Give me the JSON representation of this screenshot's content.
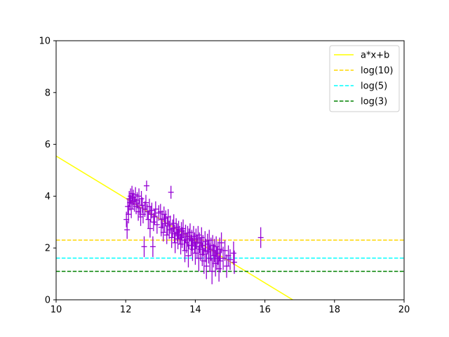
{
  "chart_data": {
    "type": "scatter",
    "xlim": [
      10,
      20
    ],
    "ylim": [
      0,
      10
    ],
    "xticks": [
      "10",
      "12",
      "14",
      "16",
      "18",
      "20"
    ],
    "yticks": [
      "0",
      "2",
      "4",
      "6",
      "8",
      "10"
    ],
    "grid": false,
    "legend_position": "top-right",
    "lines": [
      {
        "name": "a*x+b",
        "style": "solid",
        "color": "#ffff00",
        "x": [
          10,
          16.8
        ],
        "y": [
          5.55,
          0
        ]
      },
      {
        "name": "log(10)",
        "style": "dashed",
        "color": "#ffd700",
        "y": 2.303
      },
      {
        "name": "log(5)",
        "style": "dashed",
        "color": "#00ffff",
        "y": 1.609
      },
      {
        "name": "log(3)",
        "style": "dashed",
        "color": "#008000",
        "y": 1.099
      }
    ],
    "scatter": {
      "color": "#9400d3",
      "points": [
        {
          "x": 12.02,
          "y": 3.1,
          "e": 0.3
        },
        {
          "x": 12.04,
          "y": 2.7,
          "e": 0.35
        },
        {
          "x": 12.06,
          "y": 3.6,
          "e": 0.3
        },
        {
          "x": 12.08,
          "y": 3.3,
          "e": 0.35
        },
        {
          "x": 12.1,
          "y": 3.9,
          "e": 0.3
        },
        {
          "x": 12.12,
          "y": 3.75,
          "e": 0.3
        },
        {
          "x": 12.14,
          "y": 4.0,
          "e": 0.3
        },
        {
          "x": 12.16,
          "y": 3.5,
          "e": 0.35
        },
        {
          "x": 12.18,
          "y": 4.1,
          "e": 0.3
        },
        {
          "x": 12.2,
          "y": 3.8,
          "e": 0.3
        },
        {
          "x": 12.22,
          "y": 3.95,
          "e": 0.3
        },
        {
          "x": 12.25,
          "y": 3.7,
          "e": 0.3
        },
        {
          "x": 12.28,
          "y": 4.05,
          "e": 0.3
        },
        {
          "x": 12.3,
          "y": 3.6,
          "e": 0.3
        },
        {
          "x": 12.33,
          "y": 3.85,
          "e": 0.3
        },
        {
          "x": 12.36,
          "y": 3.4,
          "e": 0.35
        },
        {
          "x": 12.38,
          "y": 4.0,
          "e": 0.3
        },
        {
          "x": 12.4,
          "y": 3.55,
          "e": 0.3
        },
        {
          "x": 12.43,
          "y": 3.2,
          "e": 0.35
        },
        {
          "x": 12.45,
          "y": 3.9,
          "e": 0.3
        },
        {
          "x": 12.48,
          "y": 3.65,
          "e": 0.3
        },
        {
          "x": 12.5,
          "y": 3.3,
          "e": 0.35
        },
        {
          "x": 12.53,
          "y": 2.05,
          "e": 0.4
        },
        {
          "x": 12.55,
          "y": 3.5,
          "e": 0.3
        },
        {
          "x": 12.58,
          "y": 3.75,
          "e": 0.3
        },
        {
          "x": 12.6,
          "y": 4.4,
          "e": 0.2
        },
        {
          "x": 12.62,
          "y": 3.4,
          "e": 0.3
        },
        {
          "x": 12.65,
          "y": 3.1,
          "e": 0.35
        },
        {
          "x": 12.68,
          "y": 3.6,
          "e": 0.3
        },
        {
          "x": 12.7,
          "y": 2.75,
          "e": 0.35
        },
        {
          "x": 12.72,
          "y": 3.3,
          "e": 0.3
        },
        {
          "x": 12.75,
          "y": 3.45,
          "e": 0.3
        },
        {
          "x": 12.78,
          "y": 2.05,
          "e": 0.4
        },
        {
          "x": 12.8,
          "y": 3.0,
          "e": 0.35
        },
        {
          "x": 12.83,
          "y": 3.2,
          "e": 0.3
        },
        {
          "x": 12.86,
          "y": 3.5,
          "e": 0.3
        },
        {
          "x": 12.9,
          "y": 2.9,
          "e": 0.35
        },
        {
          "x": 12.95,
          "y": 3.35,
          "e": 0.3
        },
        {
          "x": 13.0,
          "y": 3.4,
          "e": 0.3
        },
        {
          "x": 13.02,
          "y": 2.8,
          "e": 0.35
        },
        {
          "x": 13.05,
          "y": 3.1,
          "e": 0.35
        },
        {
          "x": 13.08,
          "y": 2.6,
          "e": 0.35
        },
        {
          "x": 13.1,
          "y": 3.3,
          "e": 0.3
        },
        {
          "x": 13.12,
          "y": 2.95,
          "e": 0.35
        },
        {
          "x": 13.15,
          "y": 3.15,
          "e": 0.3
        },
        {
          "x": 13.18,
          "y": 2.5,
          "e": 0.35
        },
        {
          "x": 13.2,
          "y": 2.85,
          "e": 0.35
        },
        {
          "x": 13.22,
          "y": 3.2,
          "e": 0.3
        },
        {
          "x": 13.25,
          "y": 2.7,
          "e": 0.35
        },
        {
          "x": 13.28,
          "y": 2.9,
          "e": 0.35
        },
        {
          "x": 13.3,
          "y": 4.15,
          "e": 0.25
        },
        {
          "x": 13.32,
          "y": 2.4,
          "e": 0.4
        },
        {
          "x": 13.35,
          "y": 2.75,
          "e": 0.35
        },
        {
          "x": 13.38,
          "y": 2.95,
          "e": 0.35
        },
        {
          "x": 13.4,
          "y": 2.55,
          "e": 0.35
        },
        {
          "x": 13.42,
          "y": 2.2,
          "e": 0.4
        },
        {
          "x": 13.45,
          "y": 2.8,
          "e": 0.35
        },
        {
          "x": 13.48,
          "y": 2.6,
          "e": 0.35
        },
        {
          "x": 13.5,
          "y": 2.35,
          "e": 0.4
        },
        {
          "x": 13.52,
          "y": 2.7,
          "e": 0.35
        },
        {
          "x": 13.55,
          "y": 2.5,
          "e": 0.35
        },
        {
          "x": 13.58,
          "y": 2.15,
          "e": 0.4
        },
        {
          "x": 13.6,
          "y": 2.65,
          "e": 0.35
        },
        {
          "x": 13.62,
          "y": 2.4,
          "e": 0.4
        },
        {
          "x": 13.65,
          "y": 2.75,
          "e": 0.35
        },
        {
          "x": 13.68,
          "y": 2.3,
          "e": 0.4
        },
        {
          "x": 13.7,
          "y": 1.9,
          "e": 0.45
        },
        {
          "x": 13.72,
          "y": 2.55,
          "e": 0.35
        },
        {
          "x": 13.75,
          "y": 2.2,
          "e": 0.4
        },
        {
          "x": 13.78,
          "y": 2.45,
          "e": 0.4
        },
        {
          "x": 13.8,
          "y": 1.7,
          "e": 0.45
        },
        {
          "x": 13.82,
          "y": 2.35,
          "e": 0.4
        },
        {
          "x": 13.85,
          "y": 2.6,
          "e": 0.35
        },
        {
          "x": 13.88,
          "y": 2.1,
          "e": 0.4
        },
        {
          "x": 13.9,
          "y": 2.3,
          "e": 0.4
        },
        {
          "x": 13.92,
          "y": 1.95,
          "e": 0.45
        },
        {
          "x": 13.95,
          "y": 2.45,
          "e": 0.4
        },
        {
          "x": 13.98,
          "y": 2.2,
          "e": 0.4
        },
        {
          "x": 14.0,
          "y": 1.8,
          "e": 0.45
        },
        {
          "x": 14.02,
          "y": 2.35,
          "e": 0.4
        },
        {
          "x": 14.05,
          "y": 2.05,
          "e": 0.45
        },
        {
          "x": 14.08,
          "y": 2.5,
          "e": 0.35
        },
        {
          "x": 14.1,
          "y": 1.6,
          "e": 0.5
        },
        {
          "x": 14.12,
          "y": 2.2,
          "e": 0.4
        },
        {
          "x": 14.15,
          "y": 1.95,
          "e": 0.45
        },
        {
          "x": 14.18,
          "y": 2.4,
          "e": 0.4
        },
        {
          "x": 14.2,
          "y": 1.75,
          "e": 0.45
        },
        {
          "x": 14.22,
          "y": 2.1,
          "e": 0.4
        },
        {
          "x": 14.25,
          "y": 1.5,
          "e": 0.5
        },
        {
          "x": 14.28,
          "y": 2.25,
          "e": 0.4
        },
        {
          "x": 14.3,
          "y": 1.9,
          "e": 0.45
        },
        {
          "x": 14.32,
          "y": 1.3,
          "e": 0.5
        },
        {
          "x": 14.35,
          "y": 2.15,
          "e": 0.4
        },
        {
          "x": 14.38,
          "y": 1.85,
          "e": 0.45
        },
        {
          "x": 14.4,
          "y": 2.3,
          "e": 0.4
        },
        {
          "x": 14.42,
          "y": 1.6,
          "e": 0.5
        },
        {
          "x": 14.45,
          "y": 1.95,
          "e": 0.45
        },
        {
          "x": 14.48,
          "y": 1.1,
          "e": 0.5
        },
        {
          "x": 14.5,
          "y": 2.1,
          "e": 0.4
        },
        {
          "x": 14.52,
          "y": 1.7,
          "e": 0.45
        },
        {
          "x": 14.55,
          "y": 1.9,
          "e": 0.45
        },
        {
          "x": 14.58,
          "y": 1.4,
          "e": 0.5
        },
        {
          "x": 14.6,
          "y": 2.05,
          "e": 0.4
        },
        {
          "x": 14.62,
          "y": 1.6,
          "e": 0.45
        },
        {
          "x": 14.65,
          "y": 1.8,
          "e": 0.45
        },
        {
          "x": 14.68,
          "y": 1.2,
          "e": 0.5
        },
        {
          "x": 14.7,
          "y": 1.95,
          "e": 0.45
        },
        {
          "x": 14.72,
          "y": 1.5,
          "e": 0.45
        },
        {
          "x": 14.75,
          "y": 2.2,
          "e": 0.4
        },
        {
          "x": 14.8,
          "y": 1.6,
          "e": 0.45
        },
        {
          "x": 14.85,
          "y": 1.9,
          "e": 0.4
        },
        {
          "x": 14.9,
          "y": 1.3,
          "e": 0.45
        },
        {
          "x": 14.95,
          "y": 1.7,
          "e": 0.4
        },
        {
          "x": 15.0,
          "y": 1.55,
          "e": 0.4
        },
        {
          "x": 15.1,
          "y": 1.8,
          "e": 0.45
        },
        {
          "x": 15.12,
          "y": 1.45,
          "e": 0.45
        },
        {
          "x": 15.88,
          "y": 2.4,
          "e": 0.4
        }
      ]
    }
  }
}
